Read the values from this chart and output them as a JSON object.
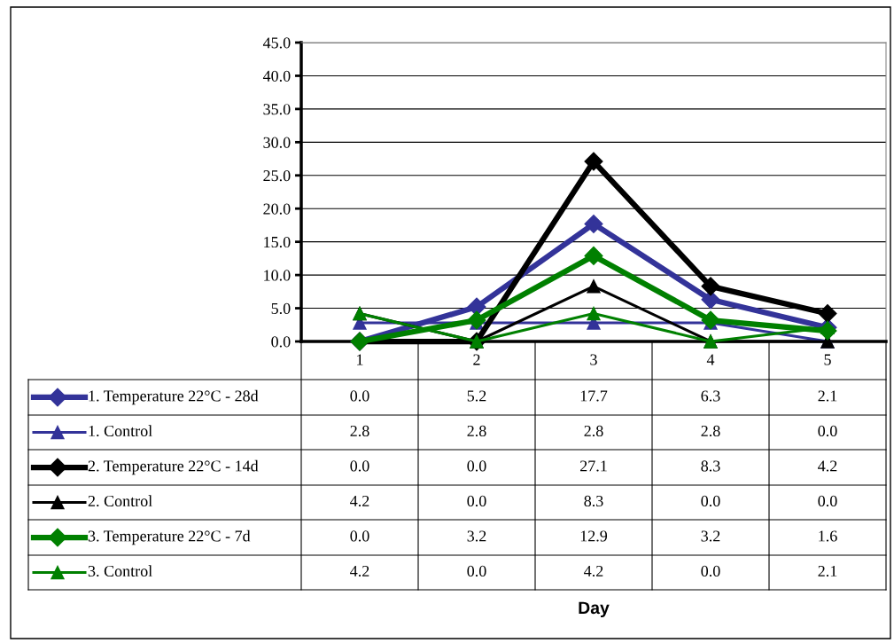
{
  "chart_data": {
    "type": "line",
    "annotations": [
      "Day"
    ],
    "categories": [
      "1",
      "2",
      "3",
      "4",
      "5"
    ],
    "ylim": [
      0,
      45
    ],
    "yticks": [
      {
        "value": 0,
        "label": "0.0"
      },
      {
        "value": 5,
        "label": "5.0"
      },
      {
        "value": 10,
        "label": "10.0"
      },
      {
        "value": 15,
        "label": "15.0"
      },
      {
        "value": 20,
        "label": "20.0"
      },
      {
        "value": 25,
        "label": "25.0"
      },
      {
        "value": 30,
        "label": "30.0"
      },
      {
        "value": 35,
        "label": "35.0"
      },
      {
        "value": 40,
        "label": "40.0"
      },
      {
        "value": 45,
        "label": "45.0"
      }
    ],
    "grid": "y",
    "legend": "bottom",
    "series": [
      {
        "name": "1. Temperature 22°C - 28d",
        "color": "#333399",
        "marker": "diamond",
        "values": [
          0.0,
          5.2,
          17.7,
          6.3,
          2.1
        ],
        "value_labels": [
          "0.0",
          "5.2",
          "17.7",
          "6.3",
          "2.1"
        ]
      },
      {
        "name": "1. Control",
        "color": "#333399",
        "marker": "triangle",
        "values": [
          2.8,
          2.8,
          2.8,
          2.8,
          0.0
        ],
        "value_labels": [
          "2.8",
          "2.8",
          "2.8",
          "2.8",
          "0.0"
        ]
      },
      {
        "name": "2. Temperature 22°C - 14d",
        "color": "#000000",
        "marker": "diamond",
        "values": [
          0.0,
          0.0,
          27.1,
          8.3,
          4.2
        ],
        "value_labels": [
          "0.0",
          "0.0",
          "27.1",
          "8.3",
          "4.2"
        ]
      },
      {
        "name": "2. Control",
        "color": "#000000",
        "marker": "triangle",
        "values": [
          4.2,
          0.0,
          8.3,
          0.0,
          0.0
        ],
        "value_labels": [
          "4.2",
          "0.0",
          "8.3",
          "0.0",
          "0.0"
        ]
      },
      {
        "name": "3. Temperature 22°C - 7d",
        "color": "#008000",
        "marker": "diamond",
        "values": [
          0.0,
          3.2,
          12.9,
          3.2,
          1.6
        ],
        "value_labels": [
          "0.0",
          "3.2",
          "12.9",
          "3.2",
          "1.6"
        ]
      },
      {
        "name": "3. Control",
        "color": "#008000",
        "marker": "triangle",
        "values": [
          4.2,
          0.0,
          4.2,
          0.0,
          2.1
        ],
        "value_labels": [
          "4.2",
          "0.0",
          "4.2",
          "0.0",
          "2.1"
        ]
      }
    ]
  }
}
